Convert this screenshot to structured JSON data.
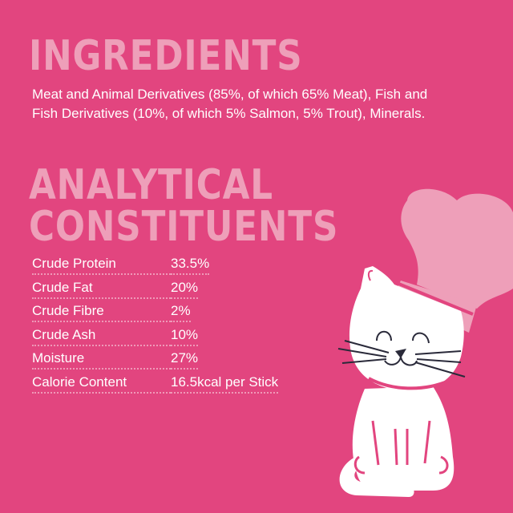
{
  "ingredients": {
    "title": "INGREDIENTS",
    "text": "Meat and Animal Derivatives (85%, of which 65% Meat), Fish and Fish Derivatives (10%, of which 5% Salmon, 5% Trout), Minerals."
  },
  "analytical": {
    "title_line1": "ANALYTICAL",
    "title_line2": "CONSTITUENTS",
    "rows": [
      {
        "label": "Crude Protein",
        "value": "33.5%"
      },
      {
        "label": "Crude Fat",
        "value": "20%"
      },
      {
        "label": "Crude Fibre",
        "value": "2%"
      },
      {
        "label": "Crude Ash",
        "value": "10%"
      },
      {
        "label": "Moisture",
        "value": "27%"
      },
      {
        "label": "Calorie Content",
        "value": "16.5kcal per Stick"
      }
    ]
  },
  "colors": {
    "background": "#e2457f",
    "heading": "#ee9fb9",
    "text": "#ffffff"
  },
  "illustration": "cat-in-chef-hat"
}
